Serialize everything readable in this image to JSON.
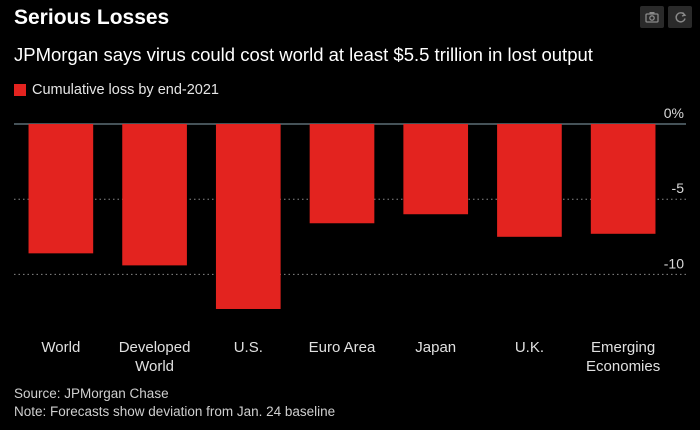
{
  "title": "Serious Losses",
  "subtitle": "JPMorgan says virus could cost world at least $5.5 trillion in lost output",
  "toolbar": {
    "icons": [
      "camera-icon",
      "refresh-icon"
    ]
  },
  "footer": {
    "source": "Source: JPMorgan Chase",
    "note": "Note: Forecasts show deviation from Jan. 24 baseline"
  },
  "colors": {
    "bar": "#e3231f",
    "background": "#000000",
    "gridline": "#888888",
    "zero_line": "#8aa4b0"
  },
  "chart_data": {
    "type": "bar",
    "title": "Serious Losses",
    "subtitle": "JPMorgan says virus could cost world at least $5.5 trillion in lost output",
    "legend": [
      {
        "name": "Cumulative loss by end-2021",
        "color": "#e3231f"
      }
    ],
    "legend_position": "top-left",
    "categories": [
      [
        "World"
      ],
      [
        "Developed",
        "World"
      ],
      [
        "U.S."
      ],
      [
        "Euro Area"
      ],
      [
        "Japan"
      ],
      [
        "U.K."
      ],
      [
        "Emerging",
        "Economies"
      ]
    ],
    "series": [
      {
        "name": "Cumulative loss by end-2021",
        "values": [
          -8.6,
          -9.4,
          -12.3,
          -6.6,
          -6.0,
          -7.5,
          -7.3
        ]
      }
    ],
    "y_ticks": [
      {
        "value": 0,
        "label": "0%"
      },
      {
        "value": -5,
        "label": "-5"
      },
      {
        "value": -10,
        "label": "-10"
      }
    ],
    "ylim": [
      -12.5,
      0
    ],
    "y_axis_position": "right",
    "grid": true,
    "xlabel": "",
    "ylabel": ""
  }
}
